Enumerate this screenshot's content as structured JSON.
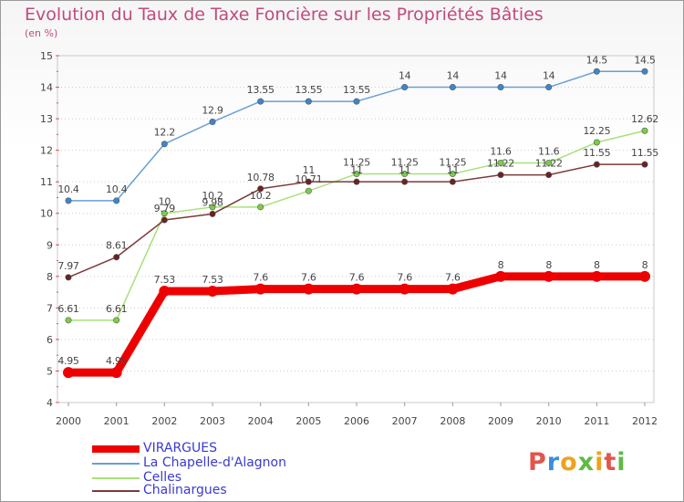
{
  "chart_data": {
    "type": "line",
    "title": "Evolution du Taux de Taxe Foncière sur les Propriétés Bâties",
    "subtitle": "(en %)",
    "x": [
      "2000",
      "2001",
      "2002",
      "2003",
      "2004",
      "2005",
      "2006",
      "2007",
      "2008",
      "2009",
      "2010",
      "2011",
      "2012"
    ],
    "ylim": [
      4,
      15
    ],
    "yticks": [
      4,
      5,
      6,
      7,
      8,
      9,
      10,
      11,
      12,
      13,
      14,
      15
    ],
    "grid": "horizontal dotted",
    "series": [
      {
        "name": "VIRARGUES",
        "color": "#ee0000",
        "emphasis": true,
        "values": [
          4.95,
          4.95,
          7.53,
          7.53,
          7.6,
          7.6,
          7.6,
          7.6,
          7.6,
          8,
          8,
          8,
          8
        ],
        "labels": [
          "4.95",
          "4.95",
          "7.53",
          "7.53",
          "7.6",
          "7.6",
          "7.6",
          "7.6",
          "7.6",
          "8",
          "8",
          "8",
          "8"
        ]
      },
      {
        "name": "La Chapelle-d'Alagnon",
        "color": "#6a9fd4",
        "point_color": "#3d86cc",
        "values": [
          10.4,
          10.4,
          12.2,
          12.9,
          13.55,
          13.55,
          13.55,
          14,
          14,
          14,
          14,
          14.5,
          14.5
        ],
        "labels": [
          "10.4",
          "10.4",
          "12.2",
          "12.9",
          "13.55",
          "13.55",
          "13.55",
          "14",
          "14",
          "14",
          "14",
          "14.5",
          "14.5"
        ]
      },
      {
        "name": "Celles",
        "color": "#a8e07a",
        "point_color": "#7ccd45",
        "values": [
          6.61,
          6.61,
          10,
          10.2,
          10.2,
          10.71,
          11.25,
          11.25,
          11.25,
          11.6,
          11.6,
          12.25,
          12.62
        ],
        "labels": [
          "6.61",
          "6.61",
          "10",
          "10.2",
          "10.2",
          "10.71",
          "11.25",
          "11.25",
          "11.25",
          "11.6",
          "11.6",
          "12.25",
          "12.62"
        ]
      },
      {
        "name": "Chalinargues",
        "color": "#7a3a3a",
        "point_color": "#6b2222",
        "values": [
          7.97,
          8.61,
          9.79,
          9.98,
          10.78,
          11,
          11,
          11,
          11,
          11.22,
          11.22,
          11.55,
          11.55
        ],
        "labels": [
          "7.97",
          "8.61",
          "9.79",
          "9.98",
          "10.78",
          "11",
          "11",
          "11",
          "11",
          "11.22",
          "11.22",
          "11.55",
          "11.55"
        ]
      }
    ]
  },
  "legend": {
    "items": [
      {
        "label": "VIRARGUES",
        "color": "#ee0000"
      },
      {
        "label": "La Chapelle-d'Alagnon",
        "color": "#6a9fd4"
      },
      {
        "label": "Celles",
        "color": "#a8e07a"
      },
      {
        "label": "Chalinargues",
        "color": "#7a3a3a"
      }
    ]
  },
  "brand": {
    "letters": [
      "P",
      "r",
      "o",
      "x",
      "i",
      "t",
      "i"
    ]
  }
}
